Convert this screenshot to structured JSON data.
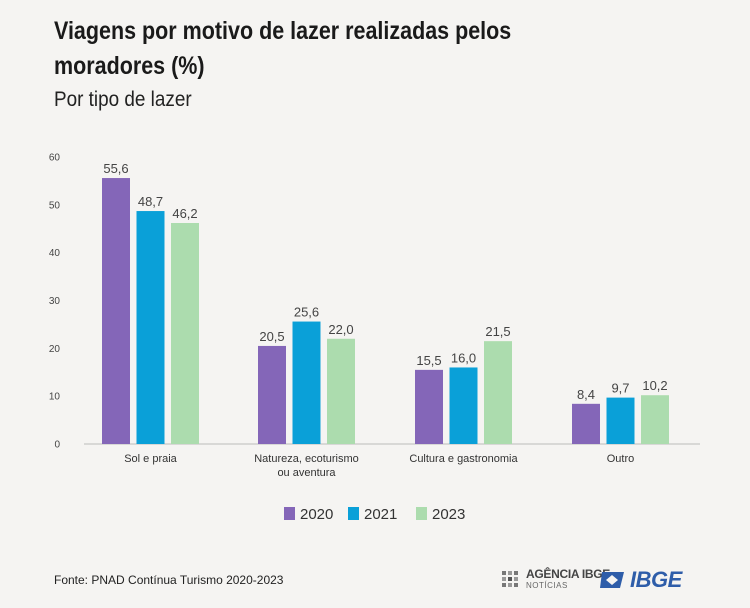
{
  "header": {
    "title": "Viagens por motivo de lazer realizadas pelos moradores (%)",
    "subtitle": "Por tipo de lazer"
  },
  "footer": {
    "source": "Fonte: PNAD Contínua Turismo 2020-2023",
    "agency_name": "AGÊNCIA IBGE",
    "agency_sub": "NOTÍCIAS",
    "logo_text": "IBGE"
  },
  "colors": {
    "s2020": "#8466b8",
    "s2021": "#0aa0d8",
    "s2023": "#acdcae",
    "brand": "#2e5da9"
  },
  "chart_data": {
    "type": "bar",
    "title": "Viagens por motivo de lazer realizadas pelos moradores (%)",
    "subtitle": "Por tipo de lazer",
    "categories": [
      "Sol e praia",
      "Natureza, ecoturismo ou aventura",
      "Cultura e gastronomia",
      "Outro"
    ],
    "category_lines": [
      [
        "Sol e praia"
      ],
      [
        "Natureza, ecoturismo",
        "ou aventura"
      ],
      [
        "Cultura e gastronomia"
      ],
      [
        "Outro"
      ]
    ],
    "series": [
      {
        "name": "2020",
        "values": [
          55.6,
          20.5,
          15.5,
          8.4
        ]
      },
      {
        "name": "2021",
        "values": [
          48.7,
          25.6,
          16.0,
          9.7
        ]
      },
      {
        "name": "2023",
        "values": [
          46.2,
          22.0,
          21.5,
          10.2
        ]
      }
    ],
    "ylim": [
      0,
      60
    ],
    "yticks": [
      0,
      10,
      20,
      30,
      40,
      50,
      60
    ],
    "xlabel": "",
    "ylabel": "",
    "legend_position": "bottom-center",
    "decimal_separator": ","
  }
}
